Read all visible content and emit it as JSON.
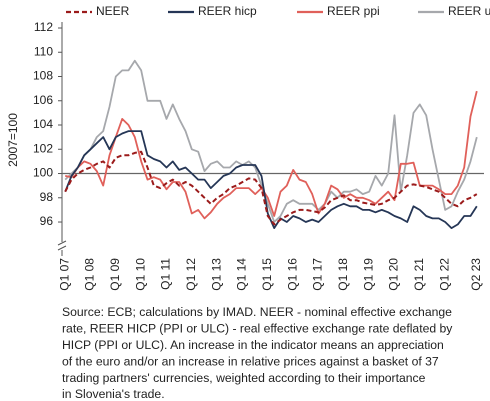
{
  "chart_data": {
    "type": "line",
    "y_label": "2007=100",
    "categories": [
      "Q1 07",
      null,
      null,
      null,
      "Q1 08",
      null,
      null,
      null,
      "Q1 09",
      null,
      null,
      null,
      "Q1 10",
      null,
      null,
      null,
      "Q1 11",
      null,
      null,
      null,
      "Q1 12",
      null,
      null,
      null,
      "Q1 13",
      null,
      null,
      null,
      "Q1 14",
      null,
      null,
      null,
      "Q1 15",
      null,
      null,
      null,
      "Q1 16",
      null,
      null,
      null,
      "Q1 17",
      null,
      null,
      null,
      "Q1 18",
      null,
      null,
      null,
      "Q1 19",
      null,
      null,
      null,
      "Q1 20",
      null,
      null,
      null,
      "Q1 21",
      null,
      null,
      null,
      "Q1 22",
      null,
      null,
      null,
      null,
      "Q2 23"
    ],
    "ylim": [
      94.6,
      112
    ],
    "yticks": [
      96,
      98,
      100,
      102,
      104,
      106,
      108,
      110,
      112
    ],
    "reference_line": 100,
    "series": [
      {
        "name": "NEER",
        "color": "#9b1b1b",
        "dashed": true,
        "values": [
          98.5,
          99.5,
          100.0,
          100.3,
          100.5,
          100.8,
          101.0,
          100.5,
          101.3,
          101.5,
          101.5,
          101.7,
          101.8,
          100.5,
          99.0,
          98.8,
          99.2,
          99.5,
          99.0,
          99.3,
          99.0,
          98.5,
          98.0,
          97.5,
          98.0,
          98.3,
          98.8,
          99.0,
          99.3,
          99.6,
          99.5,
          98.8,
          96.5,
          95.8,
          96.2,
          96.5,
          96.8,
          97.0,
          97.0,
          96.9,
          96.8,
          97.2,
          97.8,
          98.0,
          98.2,
          97.8,
          97.8,
          97.6,
          97.5,
          97.4,
          97.5,
          97.8,
          98.0,
          98.5,
          99.0,
          99.1,
          99.0,
          98.9,
          98.7,
          98.5,
          98.0,
          97.5,
          97.3,
          97.8,
          98.0,
          98.3
        ]
      },
      {
        "name": "REER hicp",
        "color": "#253656",
        "dashed": false,
        "values": [
          98.5,
          99.8,
          100.5,
          101.5,
          102.0,
          102.5,
          103.0,
          102.0,
          103.0,
          103.3,
          103.5,
          103.5,
          103.5,
          101.5,
          101.2,
          101.0,
          100.5,
          101.0,
          100.3,
          100.5,
          100.0,
          99.5,
          99.5,
          98.8,
          99.3,
          99.8,
          100.0,
          100.5,
          100.7,
          100.7,
          100.7,
          99.8,
          96.7,
          95.5,
          96.3,
          96.0,
          96.5,
          96.3,
          96.0,
          96.2,
          96.0,
          96.5,
          97.0,
          97.3,
          97.5,
          97.3,
          97.3,
          97.0,
          97.0,
          96.8,
          97.0,
          96.8,
          96.5,
          96.3,
          96.0,
          97.3,
          97.0,
          96.5,
          96.3,
          96.3,
          96.0,
          95.5,
          95.8,
          96.5,
          96.5,
          97.3
        ]
      },
      {
        "name": "REER ppi",
        "color": "#e0605a",
        "dashed": false,
        "values": [
          99.8,
          99.7,
          100.5,
          101.0,
          100.8,
          100.2,
          99.0,
          101.5,
          103.0,
          104.5,
          104.0,
          103.0,
          101.0,
          99.5,
          99.7,
          99.5,
          98.7,
          99.3,
          99.3,
          98.5,
          96.7,
          97.0,
          96.3,
          96.8,
          97.5,
          98.0,
          98.3,
          98.8,
          98.8,
          98.8,
          98.3,
          98.8,
          98.0,
          96.5,
          98.5,
          99.0,
          100.3,
          99.5,
          99.3,
          98.3,
          96.7,
          97.5,
          99.0,
          98.7,
          98.0,
          98.3,
          98.0,
          98.0,
          97.8,
          97.5,
          98.0,
          98.5,
          97.8,
          100.8,
          100.8,
          100.9,
          99.0,
          99.0,
          99.0,
          98.7,
          98.3,
          98.3,
          99.0,
          100.5,
          104.7,
          106.8
        ]
      },
      {
        "name": "REER ulc",
        "color": "#a6a8ac",
        "dashed": false,
        "values": [
          99.5,
          100.0,
          100.5,
          101.5,
          102.0,
          103.0,
          103.5,
          105.5,
          108.0,
          108.5,
          108.5,
          109.3,
          108.5,
          106.0,
          106.0,
          106.0,
          104.5,
          105.7,
          104.5,
          103.5,
          102.0,
          101.8,
          100.2,
          100.8,
          101.0,
          100.5,
          100.5,
          101.0,
          100.7,
          101.0,
          100.5,
          99.0,
          97.5,
          96.0,
          96.5,
          97.5,
          97.8,
          97.5,
          97.5,
          97.5,
          97.0,
          97.5,
          98.5,
          98.0,
          98.5,
          98.5,
          98.7,
          98.3,
          98.5,
          99.8,
          99.0,
          100.0,
          104.8,
          98.5,
          101.5,
          105.0,
          105.7,
          104.8,
          102.0,
          99.5,
          97.0,
          97.3,
          98.5,
          99.5,
          101.0,
          103.0
        ]
      }
    ],
    "source_lines": [
      "Source: ECB; calculations by IMAD. NEER - nominal effective exchange",
      "rate, REER HICP (PPI or ULC) - real effective exchange rate deflated by",
      "HICP (PPI or ULC). An increase in the indicator means an appreciation",
      "of the euro and/or an increase in relative prices against a basket of 37",
      "trading partners' currencies, weighted according to their importance",
      "in Slovenia's trade."
    ]
  }
}
